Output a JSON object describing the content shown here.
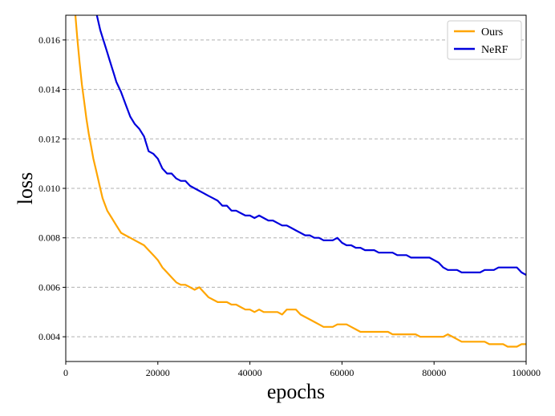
{
  "chart_data": {
    "type": "line",
    "title": "",
    "xlabel": "epochs",
    "ylabel": "loss",
    "xlim": [
      0,
      100000
    ],
    "ylim": [
      0.003,
      0.017
    ],
    "xticks": [
      0,
      20000,
      40000,
      60000,
      80000,
      100000
    ],
    "xtick_labels": [
      "0",
      "20000",
      "40000",
      "60000",
      "80000",
      "100000"
    ],
    "yticks": [
      0.004,
      0.006,
      0.008,
      0.01,
      0.012,
      0.014,
      0.016
    ],
    "ytick_labels": [
      "0.004",
      "0.006",
      "0.008",
      "0.010",
      "0.012",
      "0.014",
      "0.016"
    ],
    "grid": "horizontal dashed",
    "legend_position": "top-right",
    "series": [
      {
        "name": "Ours",
        "color": "#FFA500",
        "x": [
          2000,
          2500,
          3000,
          3500,
          4000,
          4500,
          5000,
          5500,
          6000,
          6500,
          7000,
          7500,
          8000,
          9000,
          10000,
          11000,
          12000,
          13000,
          14000,
          15000,
          16000,
          17000,
          18000,
          19000,
          20000,
          21000,
          22000,
          23000,
          24000,
          25000,
          26000,
          27000,
          28000,
          29000,
          30000,
          31000,
          32000,
          33000,
          34000,
          35000,
          36000,
          37000,
          38000,
          39000,
          40000,
          41000,
          42000,
          43000,
          44000,
          45000,
          46000,
          47000,
          48000,
          49000,
          50000,
          51000,
          52000,
          53000,
          54000,
          55000,
          56000,
          57000,
          58000,
          59000,
          60000,
          61000,
          62000,
          63000,
          64000,
          65000,
          66000,
          67000,
          68000,
          69000,
          70000,
          71000,
          72000,
          73000,
          74000,
          75000,
          76000,
          77000,
          78000,
          79000,
          80000,
          81000,
          82000,
          83000,
          84000,
          85000,
          86000,
          87000,
          88000,
          89000,
          90000,
          91000,
          92000,
          93000,
          94000,
          95000,
          96000,
          97000,
          98000,
          99000,
          100000
        ],
        "y": [
          0.0172,
          0.0161,
          0.0151,
          0.0142,
          0.0135,
          0.0128,
          0.0122,
          0.0117,
          0.0112,
          0.0108,
          0.0104,
          0.01,
          0.0096,
          0.0091,
          0.0088,
          0.0085,
          0.0082,
          0.0081,
          0.008,
          0.0079,
          0.0078,
          0.0077,
          0.0075,
          0.0073,
          0.0071,
          0.0068,
          0.0066,
          0.0064,
          0.0062,
          0.0061,
          0.0061,
          0.006,
          0.0059,
          0.006,
          0.0058,
          0.0056,
          0.0055,
          0.0054,
          0.0054,
          0.0054,
          0.0053,
          0.0053,
          0.0052,
          0.0051,
          0.0051,
          0.005,
          0.0051,
          0.005,
          0.005,
          0.005,
          0.005,
          0.0049,
          0.0051,
          0.0051,
          0.0051,
          0.0049,
          0.0048,
          0.0047,
          0.0046,
          0.0045,
          0.0044,
          0.0044,
          0.0044,
          0.0045,
          0.0045,
          0.0045,
          0.0044,
          0.0043,
          0.0042,
          0.0042,
          0.0042,
          0.0042,
          0.0042,
          0.0042,
          0.0042,
          0.0041,
          0.0041,
          0.0041,
          0.0041,
          0.0041,
          0.0041,
          0.004,
          0.004,
          0.004,
          0.004,
          0.004,
          0.004,
          0.0041,
          0.004,
          0.0039,
          0.0038,
          0.0038,
          0.0038,
          0.0038,
          0.0038,
          0.0038,
          0.0037,
          0.0037,
          0.0037,
          0.0037,
          0.0036,
          0.0036,
          0.0036,
          0.0037,
          0.0037
        ]
      },
      {
        "name": "NeRF",
        "color": "#0000DD",
        "x": [
          6500,
          7000,
          7500,
          8000,
          8500,
          9000,
          9500,
          10000,
          10500,
          11000,
          11500,
          12000,
          13000,
          14000,
          15000,
          16000,
          17000,
          18000,
          19000,
          20000,
          21000,
          22000,
          23000,
          24000,
          25000,
          26000,
          27000,
          28000,
          29000,
          30000,
          31000,
          32000,
          33000,
          34000,
          35000,
          36000,
          37000,
          38000,
          39000,
          40000,
          41000,
          42000,
          43000,
          44000,
          45000,
          46000,
          47000,
          48000,
          49000,
          50000,
          51000,
          52000,
          53000,
          54000,
          55000,
          56000,
          57000,
          58000,
          59000,
          60000,
          61000,
          62000,
          63000,
          64000,
          65000,
          66000,
          67000,
          68000,
          69000,
          70000,
          71000,
          72000,
          73000,
          74000,
          75000,
          76000,
          77000,
          78000,
          79000,
          80000,
          81000,
          82000,
          83000,
          84000,
          85000,
          86000,
          87000,
          88000,
          89000,
          90000,
          91000,
          92000,
          93000,
          94000,
          95000,
          96000,
          97000,
          98000,
          99000,
          100000
        ],
        "y": [
          0.0172,
          0.0168,
          0.0164,
          0.0161,
          0.0158,
          0.0155,
          0.0152,
          0.0149,
          0.0146,
          0.0143,
          0.0141,
          0.0139,
          0.0134,
          0.0129,
          0.0126,
          0.0124,
          0.0121,
          0.0115,
          0.0114,
          0.0112,
          0.0108,
          0.0106,
          0.0106,
          0.0104,
          0.0103,
          0.0103,
          0.0101,
          0.01,
          0.0099,
          0.0098,
          0.0097,
          0.0096,
          0.0095,
          0.0093,
          0.0093,
          0.0091,
          0.0091,
          0.009,
          0.0089,
          0.0089,
          0.0088,
          0.0089,
          0.0088,
          0.0087,
          0.0087,
          0.0086,
          0.0085,
          0.0085,
          0.0084,
          0.0083,
          0.0082,
          0.0081,
          0.0081,
          0.008,
          0.008,
          0.0079,
          0.0079,
          0.0079,
          0.008,
          0.0078,
          0.0077,
          0.0077,
          0.0076,
          0.0076,
          0.0075,
          0.0075,
          0.0075,
          0.0074,
          0.0074,
          0.0074,
          0.0074,
          0.0073,
          0.0073,
          0.0073,
          0.0072,
          0.0072,
          0.0072,
          0.0072,
          0.0072,
          0.0071,
          0.007,
          0.0068,
          0.0067,
          0.0067,
          0.0067,
          0.0066,
          0.0066,
          0.0066,
          0.0066,
          0.0066,
          0.0067,
          0.0067,
          0.0067,
          0.0068,
          0.0068,
          0.0068,
          0.0068,
          0.0068,
          0.0066,
          0.0065
        ]
      }
    ]
  }
}
